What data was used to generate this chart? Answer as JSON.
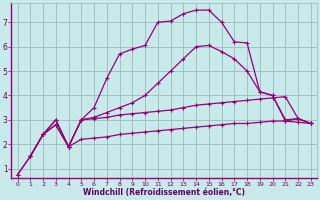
{
  "background_color": "#c8eaea",
  "grid_color": "#9bbcbc",
  "line_color": "#990077",
  "xlabel": "Windchill (Refroidissement éolien,°C)",
  "xlabel_color": "#660066",
  "tick_color": "#660066",
  "xlim": [
    -0.5,
    23.5
  ],
  "ylim": [
    0.6,
    7.8
  ],
  "yticks": [
    1,
    2,
    3,
    4,
    5,
    6,
    7
  ],
  "xticks": [
    0,
    1,
    2,
    3,
    4,
    5,
    6,
    7,
    8,
    9,
    10,
    11,
    12,
    13,
    14,
    15,
    16,
    17,
    18,
    19,
    20,
    21,
    22,
    23
  ],
  "series1_x": [
    0,
    1,
    2,
    3,
    4,
    5,
    6,
    7,
    8,
    9,
    10,
    11,
    12,
    13,
    14,
    15,
    16,
    17,
    18,
    19,
    20,
    21,
    22,
    23
  ],
  "series1_y": [
    0.75,
    1.5,
    2.4,
    2.8,
    1.9,
    2.2,
    2.25,
    2.3,
    2.4,
    2.45,
    2.5,
    2.55,
    2.6,
    2.65,
    2.7,
    2.75,
    2.8,
    2.85,
    2.85,
    2.9,
    2.95,
    2.95,
    2.9,
    2.85
  ],
  "series2_x": [
    0,
    1,
    2,
    3,
    4,
    5,
    6,
    7,
    8,
    9,
    10,
    11,
    12,
    13,
    14,
    15,
    16,
    17,
    18,
    19,
    20,
    21,
    22,
    23
  ],
  "series2_y": [
    0.75,
    1.5,
    2.4,
    3.0,
    1.9,
    3.0,
    3.05,
    3.1,
    3.2,
    3.25,
    3.3,
    3.35,
    3.4,
    3.5,
    3.6,
    3.65,
    3.7,
    3.75,
    3.8,
    3.85,
    3.9,
    3.95,
    3.05,
    2.85
  ],
  "series3_x": [
    1,
    2,
    3,
    4,
    5,
    6,
    7,
    8,
    9,
    10,
    11,
    12,
    13,
    14,
    15,
    16,
    17,
    18,
    19,
    20,
    21,
    22,
    23
  ],
  "series3_y": [
    1.5,
    2.4,
    3.0,
    1.9,
    3.0,
    3.1,
    3.3,
    3.5,
    3.7,
    4.0,
    4.5,
    5.0,
    5.5,
    6.0,
    6.05,
    5.8,
    5.5,
    5.0,
    4.15,
    4.0,
    3.0,
    3.05,
    2.85
  ],
  "series4_x": [
    1,
    2,
    3,
    4,
    5,
    6,
    7,
    8,
    9,
    10,
    11,
    12,
    13,
    14,
    15,
    16,
    17,
    18,
    19,
    20,
    21,
    22,
    23
  ],
  "series4_y": [
    1.5,
    2.4,
    2.8,
    1.9,
    3.0,
    3.5,
    4.7,
    5.7,
    5.9,
    6.05,
    7.0,
    7.05,
    7.35,
    7.5,
    7.5,
    7.0,
    6.2,
    6.15,
    4.15,
    4.0,
    2.95,
    3.05,
    2.85
  ],
  "marker": "+"
}
